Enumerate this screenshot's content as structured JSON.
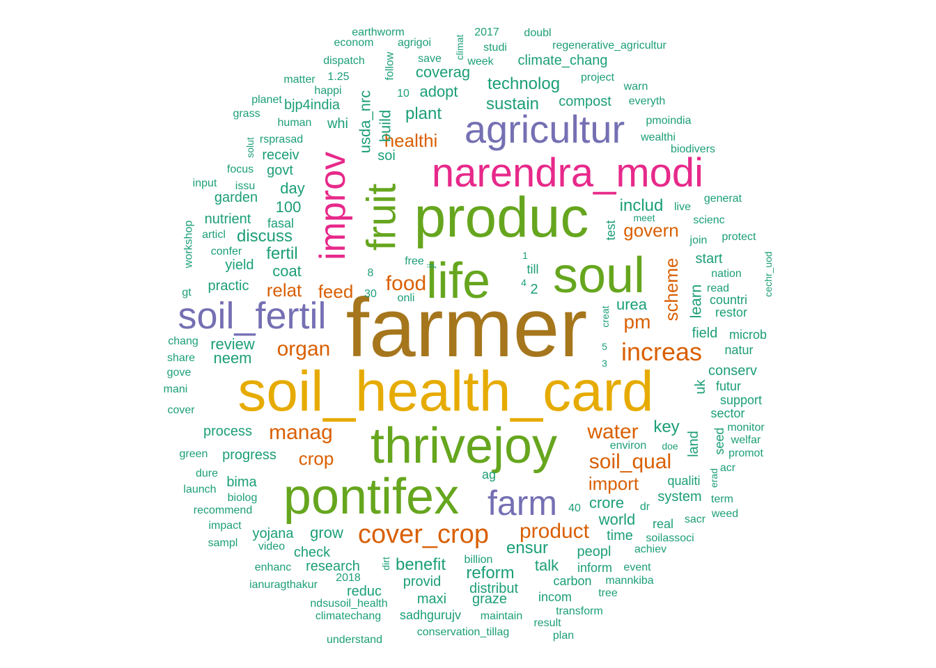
{
  "colors": {
    "teal": "#1b9e77",
    "orange": "#d95f02",
    "purple": "#7570b3",
    "magenta": "#e7298a",
    "green": "#66a61e",
    "gold": "#e6ab02",
    "brown": "#a6761d"
  },
  "words": [
    {
      "text": "farmer",
      "c": "brown"
    },
    {
      "text": "soil_health_card",
      "c": "gold"
    },
    {
      "text": "produc",
      "c": "green"
    },
    {
      "text": "life",
      "c": "green"
    },
    {
      "text": "soul",
      "c": "green"
    },
    {
      "text": "thrivejoy",
      "c": "green"
    },
    {
      "text": "pontifex",
      "c": "green"
    },
    {
      "text": "narendra_modi",
      "c": "magenta"
    },
    {
      "text": "agricultur",
      "c": "purple"
    },
    {
      "text": "soil_fertil",
      "c": "purple"
    },
    {
      "text": "farm",
      "c": "purple"
    },
    {
      "text": "fruit",
      "c": "green"
    },
    {
      "text": "improv",
      "c": "magenta"
    },
    {
      "text": "cover_crop",
      "c": "orange"
    },
    {
      "text": "increas",
      "c": "orange"
    },
    {
      "text": "organ",
      "c": "orange"
    },
    {
      "text": "soil_qual",
      "c": "orange"
    },
    {
      "text": "product",
      "c": "orange"
    },
    {
      "text": "water",
      "c": "orange"
    },
    {
      "text": "manag",
      "c": "orange"
    },
    {
      "text": "food",
      "c": "orange"
    },
    {
      "text": "import",
      "c": "orange"
    },
    {
      "text": "crop",
      "c": "orange"
    },
    {
      "text": "relat",
      "c": "orange"
    },
    {
      "text": "feed",
      "c": "orange"
    },
    {
      "text": "pm",
      "c": "orange"
    },
    {
      "text": "govern",
      "c": "orange"
    },
    {
      "text": "healthi",
      "c": "orange"
    },
    {
      "text": "scheme",
      "c": "orange"
    },
    {
      "text": "includ",
      "c": "teal"
    },
    {
      "text": "plant",
      "c": "teal"
    },
    {
      "text": "sustain",
      "c": "teal"
    },
    {
      "text": "technolog",
      "c": "teal"
    },
    {
      "text": "coverag",
      "c": "teal"
    },
    {
      "text": "adopt",
      "c": "teal"
    },
    {
      "text": "compost",
      "c": "teal"
    },
    {
      "text": "climate_chang",
      "c": "teal"
    },
    {
      "text": "usda_nrc",
      "c": "teal"
    },
    {
      "text": "build",
      "c": "teal"
    },
    {
      "text": "soi",
      "c": "teal"
    },
    {
      "text": "whi",
      "c": "teal"
    },
    {
      "text": "bjp4india",
      "c": "teal"
    },
    {
      "text": "receiv",
      "c": "teal"
    },
    {
      "text": "govt",
      "c": "teal"
    },
    {
      "text": "day",
      "c": "teal"
    },
    {
      "text": "100",
      "c": "teal"
    },
    {
      "text": "garden",
      "c": "teal"
    },
    {
      "text": "nutrient",
      "c": "teal"
    },
    {
      "text": "discuss",
      "c": "teal"
    },
    {
      "text": "fertil",
      "c": "teal"
    },
    {
      "text": "yield",
      "c": "teal"
    },
    {
      "text": "coat",
      "c": "teal"
    },
    {
      "text": "practic",
      "c": "teal"
    },
    {
      "text": "review",
      "c": "teal"
    },
    {
      "text": "neem",
      "c": "teal"
    },
    {
      "text": "urea",
      "c": "teal"
    },
    {
      "text": "learn",
      "c": "teal"
    },
    {
      "text": "start",
      "c": "teal"
    },
    {
      "text": "field",
      "c": "teal"
    },
    {
      "text": "conserv",
      "c": "teal"
    },
    {
      "text": "key",
      "c": "teal"
    },
    {
      "text": "land",
      "c": "teal"
    },
    {
      "text": "process",
      "c": "teal"
    },
    {
      "text": "progress",
      "c": "teal"
    },
    {
      "text": "bima",
      "c": "teal"
    },
    {
      "text": "yojana",
      "c": "teal"
    },
    {
      "text": "grow",
      "c": "teal"
    },
    {
      "text": "check",
      "c": "teal"
    },
    {
      "text": "research",
      "c": "teal"
    },
    {
      "text": "benefit",
      "c": "teal"
    },
    {
      "text": "reform",
      "c": "teal"
    },
    {
      "text": "ensur",
      "c": "teal"
    },
    {
      "text": "talk",
      "c": "teal"
    },
    {
      "text": "peopl",
      "c": "teal"
    },
    {
      "text": "crore",
      "c": "teal"
    },
    {
      "text": "world",
      "c": "teal"
    },
    {
      "text": "time",
      "c": "teal"
    },
    {
      "text": "provid",
      "c": "teal"
    },
    {
      "text": "distribut",
      "c": "teal"
    },
    {
      "text": "reduc",
      "c": "teal"
    },
    {
      "text": "maxi",
      "c": "teal"
    },
    {
      "text": "graze",
      "c": "teal"
    },
    {
      "text": "incom",
      "c": "teal"
    },
    {
      "text": "carbon",
      "c": "teal"
    },
    {
      "text": "inform",
      "c": "teal"
    },
    {
      "text": "system",
      "c": "teal"
    },
    {
      "text": "qualiti",
      "c": "teal"
    },
    {
      "text": "real",
      "c": "teal"
    },
    {
      "text": "fasal",
      "c": "teal"
    },
    {
      "text": "test",
      "c": "teal"
    },
    {
      "text": "uk",
      "c": "teal"
    },
    {
      "text": "countri",
      "c": "teal"
    },
    {
      "text": "restor",
      "c": "teal"
    },
    {
      "text": "microb",
      "c": "teal"
    },
    {
      "text": "natur",
      "c": "teal"
    },
    {
      "text": "futur",
      "c": "teal"
    },
    {
      "text": "support",
      "c": "teal"
    },
    {
      "text": "sector",
      "c": "teal"
    },
    {
      "text": "seed",
      "c": "teal"
    },
    {
      "text": "monitor",
      "c": "teal"
    },
    {
      "text": "welfar",
      "c": "teal"
    },
    {
      "text": "promot",
      "c": "teal"
    },
    {
      "text": "sacr",
      "c": "teal"
    },
    {
      "text": "term",
      "c": "teal"
    },
    {
      "text": "weed",
      "c": "teal"
    },
    {
      "text": "erad",
      "c": "teal"
    },
    {
      "text": "acr",
      "c": "teal"
    },
    {
      "text": "environ",
      "c": "teal"
    },
    {
      "text": "doe",
      "c": "teal"
    },
    {
      "text": "dr",
      "c": "teal"
    },
    {
      "text": "soilassoci",
      "c": "teal"
    },
    {
      "text": "achiev",
      "c": "teal"
    },
    {
      "text": "event",
      "c": "teal"
    },
    {
      "text": "mannkiba",
      "c": "teal"
    },
    {
      "text": "tree",
      "c": "teal"
    },
    {
      "text": "transform",
      "c": "teal"
    },
    {
      "text": "result",
      "c": "teal"
    },
    {
      "text": "plan",
      "c": "teal"
    },
    {
      "text": "maintain",
      "c": "teal"
    },
    {
      "text": "sadhgurujv",
      "c": "teal"
    },
    {
      "text": "conservation_tillag",
      "c": "teal"
    },
    {
      "text": "climatechang",
      "c": "teal"
    },
    {
      "text": "ndsusoil_health",
      "c": "teal"
    },
    {
      "text": "understand",
      "c": "teal"
    },
    {
      "text": "ianuragthakur",
      "c": "teal"
    },
    {
      "text": "2018",
      "c": "teal"
    },
    {
      "text": "billion",
      "c": "teal"
    },
    {
      "text": "dirt",
      "c": "teal"
    },
    {
      "text": "enhanc",
      "c": "teal"
    },
    {
      "text": "video",
      "c": "teal"
    },
    {
      "text": "sampl",
      "c": "teal"
    },
    {
      "text": "impact",
      "c": "teal"
    },
    {
      "text": "recommend",
      "c": "teal"
    },
    {
      "text": "biolog",
      "c": "teal"
    },
    {
      "text": "launch",
      "c": "teal"
    },
    {
      "text": "dure",
      "c": "teal"
    },
    {
      "text": "green",
      "c": "teal"
    },
    {
      "text": "cover",
      "c": "teal"
    },
    {
      "text": "mani",
      "c": "teal"
    },
    {
      "text": "gove",
      "c": "teal"
    },
    {
      "text": "share",
      "c": "teal"
    },
    {
      "text": "chang",
      "c": "teal"
    },
    {
      "text": "gt",
      "c": "teal"
    },
    {
      "text": "workshop",
      "c": "teal"
    },
    {
      "text": "articl",
      "c": "teal"
    },
    {
      "text": "confer",
      "c": "teal"
    },
    {
      "text": "input",
      "c": "teal"
    },
    {
      "text": "issu",
      "c": "teal"
    },
    {
      "text": "focus",
      "c": "teal"
    },
    {
      "text": "solut",
      "c": "teal"
    },
    {
      "text": "rsprasad",
      "c": "teal"
    },
    {
      "text": "human",
      "c": "teal"
    },
    {
      "text": "grass",
      "c": "teal"
    },
    {
      "text": "planet",
      "c": "teal"
    },
    {
      "text": "happi",
      "c": "teal"
    },
    {
      "text": "matter",
      "c": "teal"
    },
    {
      "text": "1.25",
      "c": "teal"
    },
    {
      "text": "dispatch",
      "c": "teal"
    },
    {
      "text": "econom",
      "c": "teal"
    },
    {
      "text": "earthworm",
      "c": "teal"
    },
    {
      "text": "agrigoi",
      "c": "teal"
    },
    {
      "text": "follow",
      "c": "teal"
    },
    {
      "text": "10",
      "c": "teal"
    },
    {
      "text": "climat",
      "c": "teal"
    },
    {
      "text": "save",
      "c": "teal"
    },
    {
      "text": "studi",
      "c": "teal"
    },
    {
      "text": "week",
      "c": "teal"
    },
    {
      "text": "2017",
      "c": "teal"
    },
    {
      "text": "doubl",
      "c": "teal"
    },
    {
      "text": "regenerative_agricultur",
      "c": "teal"
    },
    {
      "text": "project",
      "c": "teal"
    },
    {
      "text": "warn",
      "c": "teal"
    },
    {
      "text": "everyth",
      "c": "teal"
    },
    {
      "text": "pmoindia",
      "c": "teal"
    },
    {
      "text": "wealthi",
      "c": "teal"
    },
    {
      "text": "biodivers",
      "c": "teal"
    },
    {
      "text": "generat",
      "c": "teal"
    },
    {
      "text": "live",
      "c": "teal"
    },
    {
      "text": "meet",
      "c": "teal"
    },
    {
      "text": "scienc",
      "c": "teal"
    },
    {
      "text": "join",
      "c": "teal"
    },
    {
      "text": "protect",
      "c": "teal"
    },
    {
      "text": "nation",
      "c": "teal"
    },
    {
      "text": "read",
      "c": "teal"
    },
    {
      "text": "cechr_uod",
      "c": "teal"
    },
    {
      "text": "free",
      "c": "teal"
    },
    {
      "text": "ji",
      "c": "teal"
    },
    {
      "text": "onli",
      "c": "teal"
    },
    {
      "text": "8",
      "c": "teal"
    },
    {
      "text": "30",
      "c": "teal"
    },
    {
      "text": "1",
      "c": "teal"
    },
    {
      "text": "till",
      "c": "teal"
    },
    {
      "text": "4",
      "c": "teal"
    },
    {
      "text": "2",
      "c": "teal"
    },
    {
      "text": "creat",
      "c": "teal"
    },
    {
      "text": "5",
      "c": "teal"
    },
    {
      "text": "3",
      "c": "teal"
    },
    {
      "text": "ag",
      "c": "teal"
    },
    {
      "text": "40",
      "c": "teal"
    }
  ]
}
